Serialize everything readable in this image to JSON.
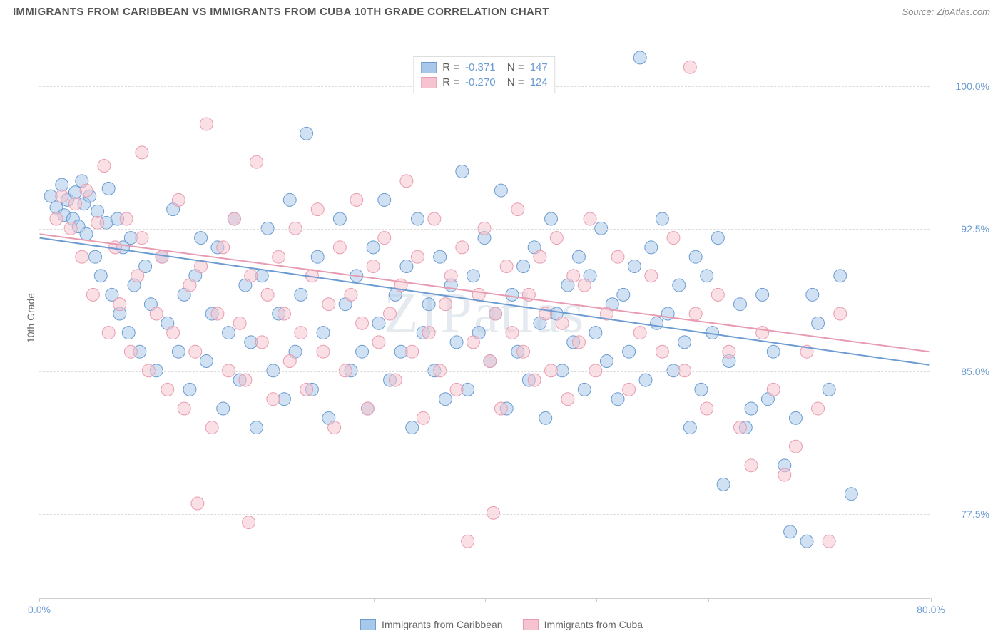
{
  "title": "IMMIGRANTS FROM CARIBBEAN VS IMMIGRANTS FROM CUBA 10TH GRADE CORRELATION CHART",
  "source": "Source: ZipAtlas.com",
  "y_label": "10th Grade",
  "watermark": "ZIPatlas",
  "chart": {
    "type": "scatter",
    "xlim": [
      0,
      80
    ],
    "ylim": [
      73,
      103
    ],
    "x_ticks": [
      0,
      10,
      20,
      30,
      40,
      50,
      60,
      70,
      80
    ],
    "x_tick_labels": {
      "0": "0.0%",
      "80": "80.0%"
    },
    "y_ticks": [
      77.5,
      85.0,
      92.5,
      100.0
    ],
    "y_tick_labels": [
      "77.5%",
      "85.0%",
      "92.5%",
      "100.0%"
    ],
    "background": "#ffffff",
    "grid_color": "#dddddd",
    "border_color": "#cccccc",
    "tick_label_color": "#6b9bd1",
    "marker_radius": 9,
    "marker_opacity": 0.55,
    "line_width": 2,
    "series": [
      {
        "name": "Immigrants from Caribbean",
        "color_fill": "#a8c8ea",
        "color_stroke": "#6b9bd1",
        "R": "-0.371",
        "N": "147",
        "trend": {
          "x1": 0,
          "y1": 92.0,
          "x2": 80,
          "y2": 85.3
        },
        "points": [
          [
            1,
            94.2
          ],
          [
            1.5,
            93.6
          ],
          [
            2,
            94.8
          ],
          [
            2.2,
            93.2
          ],
          [
            2.5,
            94.0
          ],
          [
            3,
            93.0
          ],
          [
            3.2,
            94.4
          ],
          [
            3.5,
            92.6
          ],
          [
            3.8,
            95.0
          ],
          [
            4,
            93.8
          ],
          [
            4.2,
            92.2
          ],
          [
            4.5,
            94.2
          ],
          [
            5,
            91.0
          ],
          [
            5.2,
            93.4
          ],
          [
            5.5,
            90.0
          ],
          [
            6,
            92.8
          ],
          [
            6.2,
            94.6
          ],
          [
            6.5,
            89.0
          ],
          [
            7,
            93.0
          ],
          [
            7.2,
            88.0
          ],
          [
            7.5,
            91.5
          ],
          [
            8,
            87.0
          ],
          [
            8.2,
            92.0
          ],
          [
            8.5,
            89.5
          ],
          [
            9,
            86.0
          ],
          [
            9.5,
            90.5
          ],
          [
            10,
            88.5
          ],
          [
            10.5,
            85.0
          ],
          [
            11,
            91.0
          ],
          [
            11.5,
            87.5
          ],
          [
            12,
            93.5
          ],
          [
            12.5,
            86.0
          ],
          [
            13,
            89.0
          ],
          [
            13.5,
            84.0
          ],
          [
            14,
            90.0
          ],
          [
            14.5,
            92.0
          ],
          [
            15,
            85.5
          ],
          [
            15.5,
            88.0
          ],
          [
            16,
            91.5
          ],
          [
            16.5,
            83.0
          ],
          [
            17,
            87.0
          ],
          [
            17.5,
            93.0
          ],
          [
            18,
            84.5
          ],
          [
            18.5,
            89.5
          ],
          [
            19,
            86.5
          ],
          [
            19.5,
            82.0
          ],
          [
            20,
            90.0
          ],
          [
            20.5,
            92.5
          ],
          [
            21,
            85.0
          ],
          [
            21.5,
            88.0
          ],
          [
            22,
            83.5
          ],
          [
            22.5,
            94.0
          ],
          [
            23,
            86.0
          ],
          [
            23.5,
            89.0
          ],
          [
            24,
            97.5
          ],
          [
            24.5,
            84.0
          ],
          [
            25,
            91.0
          ],
          [
            25.5,
            87.0
          ],
          [
            26,
            82.5
          ],
          [
            27,
            93.0
          ],
          [
            27.5,
            88.5
          ],
          [
            28,
            85.0
          ],
          [
            28.5,
            90.0
          ],
          [
            29,
            86.0
          ],
          [
            29.5,
            83.0
          ],
          [
            30,
            91.5
          ],
          [
            30.5,
            87.5
          ],
          [
            31,
            94.0
          ],
          [
            31.5,
            84.5
          ],
          [
            32,
            89.0
          ],
          [
            32.5,
            86.0
          ],
          [
            33,
            90.5
          ],
          [
            33.5,
            82.0
          ],
          [
            34,
            93.0
          ],
          [
            34.5,
            87.0
          ],
          [
            35,
            88.5
          ],
          [
            35.5,
            85.0
          ],
          [
            36,
            91.0
          ],
          [
            36.5,
            83.5
          ],
          [
            37,
            89.5
          ],
          [
            37.5,
            86.5
          ],
          [
            38,
            95.5
          ],
          [
            38.5,
            84.0
          ],
          [
            39,
            90.0
          ],
          [
            39.5,
            87.0
          ],
          [
            40,
            92.0
          ],
          [
            40.5,
            85.5
          ],
          [
            41,
            88.0
          ],
          [
            41.5,
            94.5
          ],
          [
            42,
            83.0
          ],
          [
            42.5,
            89.0
          ],
          [
            43,
            86.0
          ],
          [
            43.5,
            90.5
          ],
          [
            44,
            84.5
          ],
          [
            44.5,
            91.5
          ],
          [
            45,
            87.5
          ],
          [
            45.5,
            82.5
          ],
          [
            46,
            93.0
          ],
          [
            46.5,
            88.0
          ],
          [
            47,
            85.0
          ],
          [
            47.5,
            89.5
          ],
          [
            48,
            86.5
          ],
          [
            48.5,
            91.0
          ],
          [
            49,
            84.0
          ],
          [
            49.5,
            90.0
          ],
          [
            50,
            87.0
          ],
          [
            50.5,
            92.5
          ],
          [
            51,
            85.5
          ],
          [
            51.5,
            88.5
          ],
          [
            52,
            83.5
          ],
          [
            52.5,
            89.0
          ],
          [
            53,
            86.0
          ],
          [
            53.5,
            90.5
          ],
          [
            54,
            101.5
          ],
          [
            54.5,
            84.5
          ],
          [
            55,
            91.5
          ],
          [
            55.5,
            87.5
          ],
          [
            56,
            93.0
          ],
          [
            56.5,
            88.0
          ],
          [
            57,
            85.0
          ],
          [
            57.5,
            89.5
          ],
          [
            58,
            86.5
          ],
          [
            58.5,
            82.0
          ],
          [
            59,
            91.0
          ],
          [
            59.5,
            84.0
          ],
          [
            60,
            90.0
          ],
          [
            60.5,
            87.0
          ],
          [
            61,
            92.0
          ],
          [
            62,
            85.5
          ],
          [
            63,
            88.5
          ],
          [
            64,
            83.0
          ],
          [
            65,
            89.0
          ],
          [
            66,
            86.0
          ],
          [
            67,
            80.0
          ],
          [
            68,
            82.5
          ],
          [
            69,
            76.0
          ],
          [
            70,
            87.5
          ],
          [
            71,
            84.0
          ],
          [
            72,
            90.0
          ],
          [
            73,
            78.5
          ],
          [
            61.5,
            79.0
          ],
          [
            63.5,
            82.0
          ],
          [
            65.5,
            83.5
          ],
          [
            67.5,
            76.5
          ],
          [
            69.5,
            89.0
          ]
        ]
      },
      {
        "name": "Immigrants from Cuba",
        "color_fill": "#f5c4d0",
        "color_stroke": "#e89bb0",
        "R": "-0.270",
        "N": "124",
        "trend": {
          "x1": 0,
          "y1": 92.2,
          "x2": 80,
          "y2": 86.0
        },
        "points": [
          [
            1.5,
            93.0
          ],
          [
            2,
            94.2
          ],
          [
            2.8,
            92.5
          ],
          [
            3.2,
            93.8
          ],
          [
            3.8,
            91.0
          ],
          [
            4.2,
            94.5
          ],
          [
            4.8,
            89.0
          ],
          [
            5.2,
            92.8
          ],
          [
            5.8,
            95.8
          ],
          [
            6.2,
            87.0
          ],
          [
            6.8,
            91.5
          ],
          [
            7.2,
            88.5
          ],
          [
            7.8,
            93.0
          ],
          [
            8.2,
            86.0
          ],
          [
            8.8,
            90.0
          ],
          [
            9.2,
            92.0
          ],
          [
            9.8,
            85.0
          ],
          [
            10.5,
            88.0
          ],
          [
            11,
            91.0
          ],
          [
            11.5,
            84.0
          ],
          [
            12,
            87.0
          ],
          [
            12.5,
            94.0
          ],
          [
            13,
            83.0
          ],
          [
            13.5,
            89.5
          ],
          [
            14,
            86.0
          ],
          [
            14.5,
            90.5
          ],
          [
            15,
            98.0
          ],
          [
            15.5,
            82.0
          ],
          [
            16,
            88.0
          ],
          [
            16.5,
            91.5
          ],
          [
            17,
            85.0
          ],
          [
            17.5,
            93.0
          ],
          [
            18,
            87.5
          ],
          [
            18.5,
            84.5
          ],
          [
            19,
            90.0
          ],
          [
            19.5,
            96.0
          ],
          [
            20,
            86.5
          ],
          [
            20.5,
            89.0
          ],
          [
            21,
            83.5
          ],
          [
            21.5,
            91.0
          ],
          [
            22,
            88.0
          ],
          [
            22.5,
            85.5
          ],
          [
            23,
            92.5
          ],
          [
            23.5,
            87.0
          ],
          [
            24,
            84.0
          ],
          [
            24.5,
            90.0
          ],
          [
            25,
            93.5
          ],
          [
            25.5,
            86.0
          ],
          [
            26,
            88.5
          ],
          [
            26.5,
            82.0
          ],
          [
            27,
            91.5
          ],
          [
            27.5,
            85.0
          ],
          [
            28,
            89.0
          ],
          [
            28.5,
            94.0
          ],
          [
            29,
            87.5
          ],
          [
            29.5,
            83.0
          ],
          [
            30,
            90.5
          ],
          [
            30.5,
            86.5
          ],
          [
            31,
            92.0
          ],
          [
            31.5,
            88.0
          ],
          [
            32,
            84.5
          ],
          [
            32.5,
            89.5
          ],
          [
            33,
            95.0
          ],
          [
            33.5,
            86.0
          ],
          [
            34,
            91.0
          ],
          [
            34.5,
            82.5
          ],
          [
            35,
            87.0
          ],
          [
            35.5,
            93.0
          ],
          [
            36,
            85.0
          ],
          [
            36.5,
            88.5
          ],
          [
            37,
            90.0
          ],
          [
            37.5,
            84.0
          ],
          [
            38,
            91.5
          ],
          [
            38.5,
            76.0
          ],
          [
            39,
            86.5
          ],
          [
            39.5,
            89.0
          ],
          [
            40,
            92.5
          ],
          [
            40.5,
            85.5
          ],
          [
            41,
            88.0
          ],
          [
            41.5,
            83.0
          ],
          [
            42,
            90.5
          ],
          [
            42.5,
            87.0
          ],
          [
            43,
            93.5
          ],
          [
            43.5,
            86.0
          ],
          [
            44,
            89.0
          ],
          [
            44.5,
            84.5
          ],
          [
            45,
            91.0
          ],
          [
            45.5,
            88.0
          ],
          [
            46,
            85.0
          ],
          [
            46.5,
            92.0
          ],
          [
            47,
            87.5
          ],
          [
            47.5,
            83.5
          ],
          [
            48,
            90.0
          ],
          [
            48.5,
            86.5
          ],
          [
            49,
            89.5
          ],
          [
            49.5,
            93.0
          ],
          [
            50,
            85.0
          ],
          [
            51,
            88.0
          ],
          [
            52,
            91.0
          ],
          [
            53,
            84.0
          ],
          [
            54,
            87.0
          ],
          [
            55,
            90.0
          ],
          [
            56,
            86.0
          ],
          [
            57,
            92.0
          ],
          [
            58,
            85.0
          ],
          [
            58.5,
            101.0
          ],
          [
            59,
            88.0
          ],
          [
            60,
            83.0
          ],
          [
            61,
            89.0
          ],
          [
            62,
            86.0
          ],
          [
            63,
            82.0
          ],
          [
            64,
            80.0
          ],
          [
            65,
            87.0
          ],
          [
            66,
            84.0
          ],
          [
            67,
            79.5
          ],
          [
            68,
            81.0
          ],
          [
            69,
            86.0
          ],
          [
            70,
            83.0
          ],
          [
            71,
            76.0
          ],
          [
            72,
            88.0
          ],
          [
            14.2,
            78.0
          ],
          [
            18.8,
            77.0
          ],
          [
            40.8,
            77.5
          ],
          [
            9.2,
            96.5
          ]
        ]
      }
    ]
  },
  "legend_bottom": [
    {
      "label": "Immigrants from Caribbean",
      "fill": "#a8c8ea",
      "stroke": "#6b9bd1"
    },
    {
      "label": "Immigrants from Cuba",
      "fill": "#f5c4d0",
      "stroke": "#e89bb0"
    }
  ]
}
